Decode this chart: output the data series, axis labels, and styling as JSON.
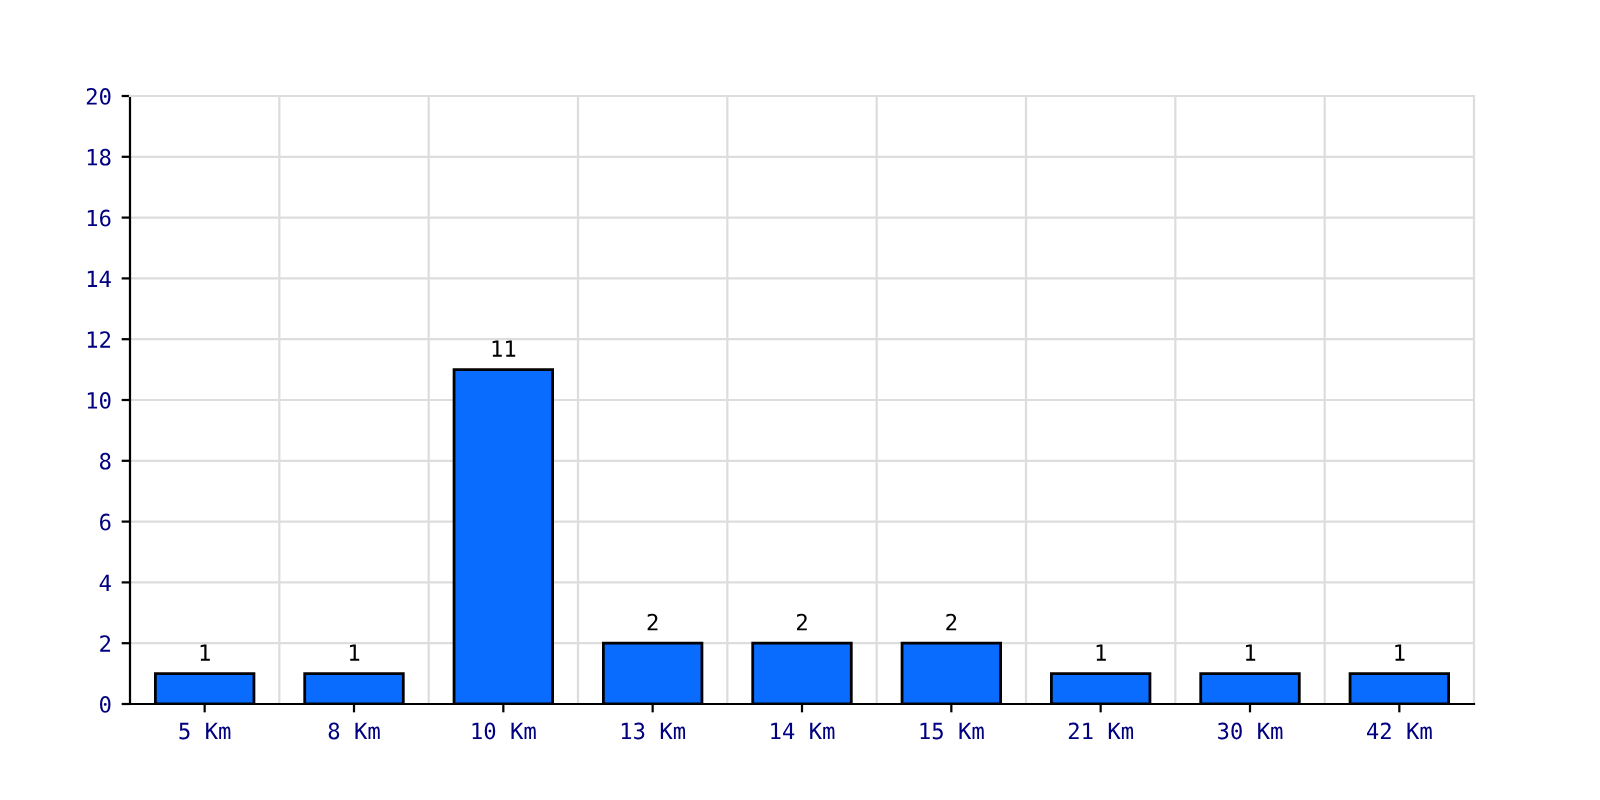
{
  "chart_data": {
    "type": "bar",
    "categories": [
      "5 Km",
      "8 Km",
      "10 Km",
      "13 Km",
      "14 Km",
      "15 Km",
      "21 Km",
      "30 Km",
      "42 Km"
    ],
    "values": [
      1,
      1,
      11,
      2,
      2,
      2,
      1,
      1,
      1
    ],
    "color": "#0a6cff",
    "ylim": [
      0,
      20
    ],
    "yticks": [
      0,
      2,
      4,
      6,
      8,
      10,
      12,
      14,
      16,
      18,
      20
    ],
    "grid": true,
    "data_labels": true
  }
}
